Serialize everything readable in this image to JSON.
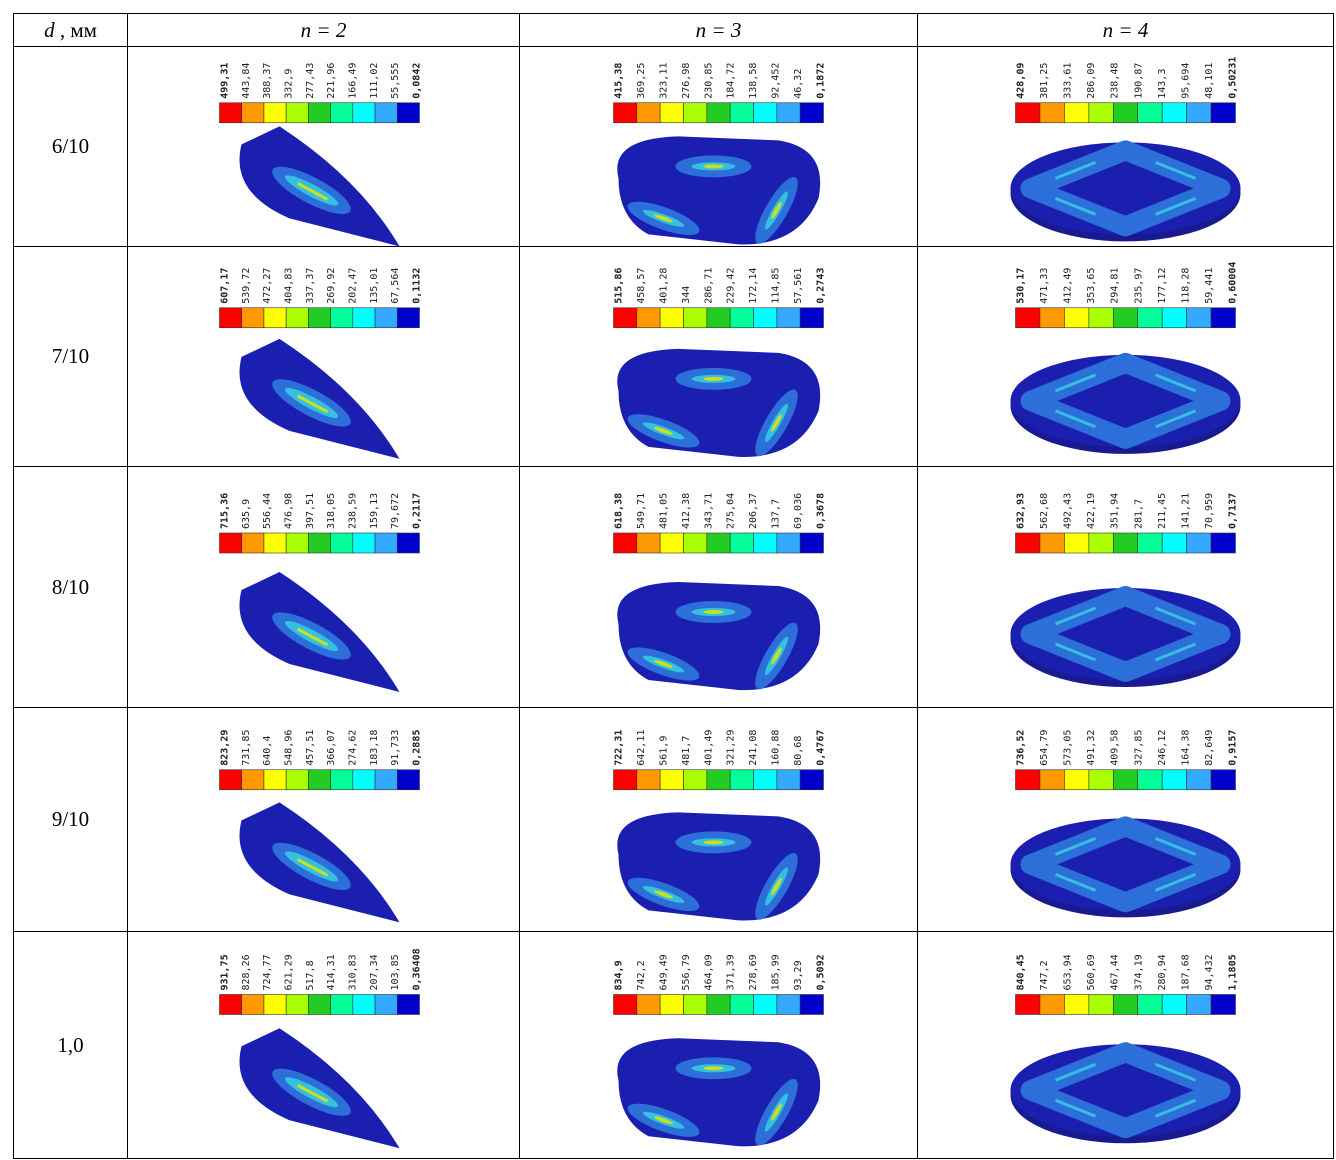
{
  "header": {
    "d_symbol": "d",
    "d_unit": " , мм",
    "columns": [
      "n = 2",
      "n = 3",
      "n = 4"
    ]
  },
  "rows": [
    {
      "d": "6/10",
      "legends": [
        [
          "499,31",
          "443,84",
          "388,37",
          "332,9",
          "277,43",
          "221,96",
          "166,49",
          "111,02",
          "55,555",
          "0,0842"
        ],
        [
          "415,38",
          "369,25",
          "323,11",
          "276,98",
          "230,85",
          "184,72",
          "138,58",
          "92,452",
          "46,32",
          "0,1872"
        ],
        [
          "428,09",
          "381,25",
          "333,61",
          "286,09",
          "238,48",
          "190,87",
          "143,3",
          "95,694",
          "48,101",
          "0,50231"
        ]
      ]
    },
    {
      "d": "7/10",
      "legends": [
        [
          "607,17",
          "539,72",
          "472,27",
          "404,83",
          "337,37",
          "269,92",
          "202,47",
          "135,01",
          "67,564",
          "0,1132"
        ],
        [
          "515,86",
          "458,57",
          "401,28",
          "344",
          "286,71",
          "229,42",
          "172,14",
          "114,85",
          "57,561",
          "0,2743"
        ],
        [
          "530,17",
          "471,33",
          "412,49",
          "353,65",
          "294,81",
          "235,97",
          "177,12",
          "118,28",
          "59,441",
          "0,60004"
        ]
      ]
    },
    {
      "d": "8/10",
      "legends": [
        [
          "715,36",
          "635,9",
          "556,44",
          "476,98",
          "397,51",
          "318,05",
          "238,59",
          "159,13",
          "79,672",
          "0,2117"
        ],
        [
          "618,38",
          "549,71",
          "481,05",
          "412,38",
          "343,71",
          "275,04",
          "206,37",
          "137,7",
          "69,036",
          "0,3678"
        ],
        [
          "632,93",
          "562,68",
          "492,43",
          "422,19",
          "351,94",
          "281,7",
          "211,45",
          "141,21",
          "70,959",
          "0,7137"
        ]
      ]
    },
    {
      "d": "9/10",
      "legends": [
        [
          "823,29",
          "731,85",
          "640,4",
          "548,96",
          "457,51",
          "366,07",
          "274,62",
          "183,18",
          "91,733",
          "0,2885"
        ],
        [
          "722,31",
          "642,11",
          "561,9",
          "481,7",
          "401,49",
          "321,29",
          "241,08",
          "160,88",
          "80,68",
          "0,4767"
        ],
        [
          "736,52",
          "654,79",
          "573,05",
          "491,32",
          "409,58",
          "327,85",
          "246,12",
          "164,38",
          "82,649",
          "0,9157"
        ]
      ]
    },
    {
      "d": "1,0",
      "legends": [
        [
          "931,75",
          "828,26",
          "724,77",
          "621,29",
          "517,8",
          "414,31",
          "310,83",
          "207,34",
          "103,85",
          "0,36408"
        ],
        [
          "834,9",
          "742,2",
          "649,49",
          "556,79",
          "464,09",
          "371,39",
          "278,69",
          "185,99",
          "93,29",
          "0,5092"
        ],
        [
          "840,45",
          "747,2",
          "653,94",
          "560,69",
          "467,44",
          "374,19",
          "280,94",
          "187,68",
          "94,432",
          "1,1805"
        ]
      ]
    }
  ]
}
